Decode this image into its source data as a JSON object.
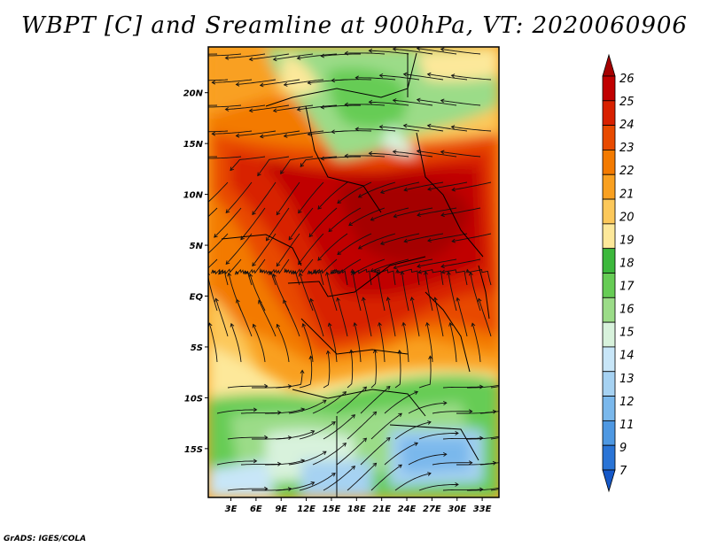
{
  "title": "WBPT [C] and Sreamline at 900hPa, VT: 2020060906",
  "credit": "GrADS: IGES/COLA",
  "map": {
    "variable": "Wet-bulb potential temperature",
    "units": "C",
    "level": "900hPa",
    "overlay": "Streamlines",
    "lat_labels": [
      "20N",
      "15N",
      "10N",
      "5N",
      "EQ",
      "5S",
      "10S",
      "15S"
    ],
    "lat_values": [
      20,
      15,
      10,
      5,
      0,
      -5,
      -10,
      -15
    ],
    "lon_labels": [
      "3E",
      "6E",
      "9E",
      "12E",
      "15E",
      "18E",
      "21E",
      "24E",
      "27E",
      "30E",
      "33E"
    ],
    "lon_values": [
      3,
      6,
      9,
      12,
      15,
      18,
      21,
      24,
      27,
      30,
      33
    ],
    "lon_range": [
      0.3,
      35
    ],
    "lat_range": [
      -19.8,
      24.5
    ]
  },
  "colorbar": {
    "levels": [
      "26",
      "25",
      "24",
      "23",
      "22",
      "21",
      "20",
      "19",
      "18",
      "17",
      "16",
      "15",
      "14",
      "13",
      "12",
      "11",
      "9",
      "7"
    ],
    "colors": [
      "#a50000",
      "#c00000",
      "#d82000",
      "#e84a00",
      "#f37a00",
      "#f9a020",
      "#fcc85a",
      "#fde89a",
      "#3cb83c",
      "#66cc55",
      "#9bdc88",
      "#d8f2dc",
      "#c8e6f8",
      "#a6d2f2",
      "#7ab8ec",
      "#4e98e2",
      "#2a74d6",
      "#1558c8"
    ]
  }
}
